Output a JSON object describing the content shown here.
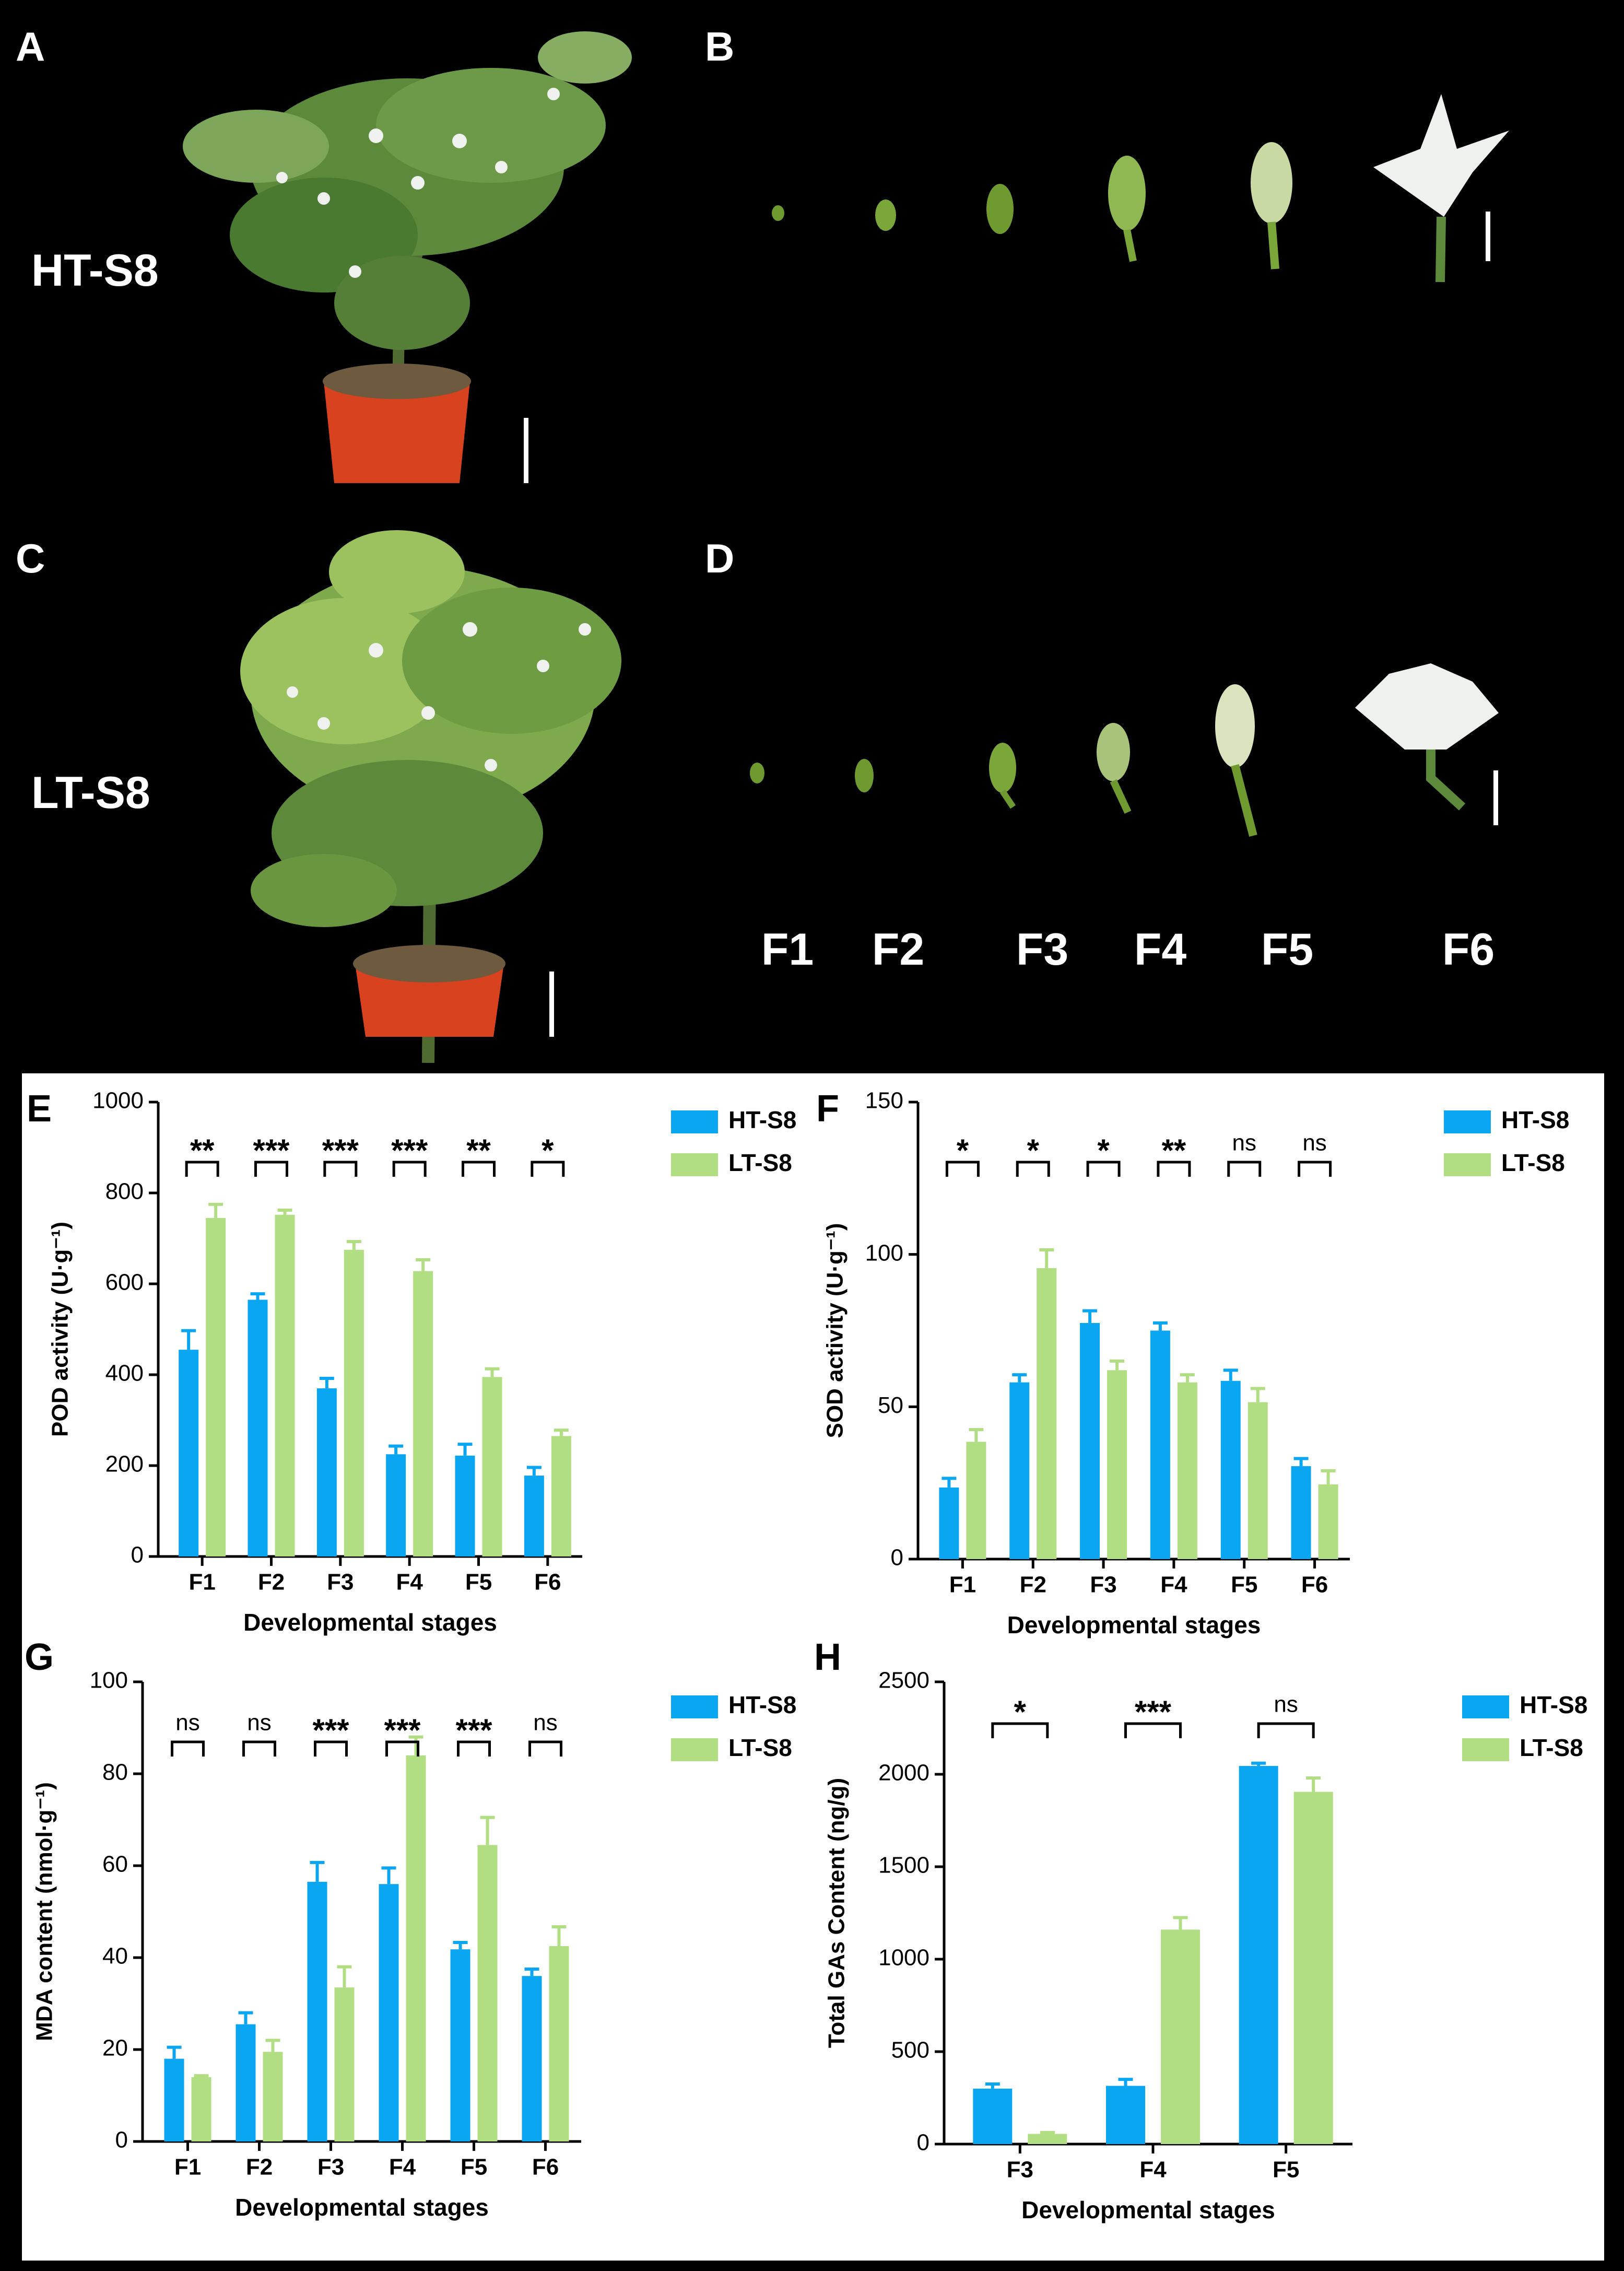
{
  "photos": {
    "panel_a": {
      "letter": "A",
      "label": "HT-S8"
    },
    "panel_b": {
      "letter": "B"
    },
    "panel_c": {
      "letter": "C",
      "label": "LT-S8"
    },
    "panel_d": {
      "letter": "D",
      "stages": [
        "F1",
        "F2",
        "F3",
        "F4",
        "F5",
        "F6"
      ]
    }
  },
  "colors": {
    "ht": "#0aa6f2",
    "lt": "#b1dd83",
    "photo_background": "#000000",
    "flower": "#eef1ee",
    "leaf": "#5c8a3a",
    "pot": "#d8421f"
  },
  "chart_data": [
    {
      "panel": "E",
      "type": "bar",
      "categories": [
        "F1",
        "F2",
        "F3",
        "F4",
        "F5",
        "F6"
      ],
      "series": [
        {
          "name": "HT-S8",
          "values": [
            455,
            565,
            370,
            225,
            222,
            178
          ],
          "errors": [
            42,
            13,
            22,
            18,
            25,
            18
          ]
        },
        {
          "name": "LT-S8",
          "values": [
            745,
            752,
            675,
            628,
            395,
            265
          ],
          "errors": [
            30,
            10,
            18,
            25,
            18,
            13
          ]
        }
      ],
      "significance": [
        "**",
        "***",
        "***",
        "***",
        "**",
        "*"
      ],
      "xlabel": "Developmental stages",
      "ylabel": "POD activity (U·g⁻¹)",
      "yticks": [
        0,
        200,
        400,
        600,
        800,
        1000
      ],
      "ylim": [
        0,
        1000
      ],
      "legend": "top-right"
    },
    {
      "panel": "F",
      "type": "bar",
      "categories": [
        "F1",
        "F2",
        "F3",
        "F4",
        "F5",
        "F6"
      ],
      "series": [
        {
          "name": "HT-S8",
          "values": [
            23.5,
            58,
            77.5,
            75,
            58.5,
            30.5
          ],
          "errors": [
            3,
            2.5,
            4,
            2.5,
            3.5,
            2.5
          ]
        },
        {
          "name": "LT-S8",
          "values": [
            38.5,
            95.5,
            62,
            58,
            51.5,
            24.5
          ],
          "errors": [
            4,
            6,
            3,
            2.5,
            4.5,
            4.5
          ]
        }
      ],
      "significance": [
        "*",
        "*",
        "*",
        "**",
        "ns",
        "ns"
      ],
      "xlabel": "Developmental stages",
      "ylabel": "SOD activity (U·g⁻¹)",
      "yticks": [
        0,
        50,
        100,
        150
      ],
      "ylim": [
        0,
        150
      ],
      "legend": "top-right"
    },
    {
      "panel": "G",
      "type": "bar",
      "categories": [
        "F1",
        "F2",
        "F3",
        "F4",
        "F5",
        "F6"
      ],
      "series": [
        {
          "name": "HT-S8",
          "values": [
            18,
            25.5,
            56.5,
            56,
            41.8,
            36
          ],
          "errors": [
            2.5,
            2.5,
            4.2,
            3.5,
            1.5,
            1.5
          ]
        },
        {
          "name": "LT-S8",
          "values": [
            14,
            19.5,
            33.5,
            84,
            64.5,
            42.5
          ],
          "errors": [
            0.3,
            2.5,
            4.5,
            4,
            6,
            4.2
          ]
        }
      ],
      "significance": [
        "ns",
        "ns",
        "***",
        "***",
        "***",
        "ns"
      ],
      "xlabel": "Developmental stages",
      "ylabel": "MDA content (nmol·g⁻¹)",
      "yticks": [
        0,
        20,
        40,
        60,
        80,
        100
      ],
      "ylim": [
        0,
        100
      ],
      "legend": "top-right"
    },
    {
      "panel": "H",
      "type": "bar",
      "categories": [
        "F3",
        "F4",
        "F5"
      ],
      "series": [
        {
          "name": "HT-S8",
          "values": [
            300,
            315,
            2045
          ],
          "errors": [
            25,
            35,
            15
          ]
        },
        {
          "name": "LT-S8",
          "values": [
            55,
            1160,
            1905
          ],
          "errors": [
            8,
            65,
            75
          ]
        }
      ],
      "significance": [
        "*",
        "***",
        "ns"
      ],
      "xlabel": "Developmental stages",
      "ylabel": "Total GAs Content (ng/g)",
      "yticks": [
        0,
        500,
        1000,
        1500,
        2000,
        2500
      ],
      "ylim": [
        0,
        2500
      ],
      "legend": "top-right"
    }
  ]
}
